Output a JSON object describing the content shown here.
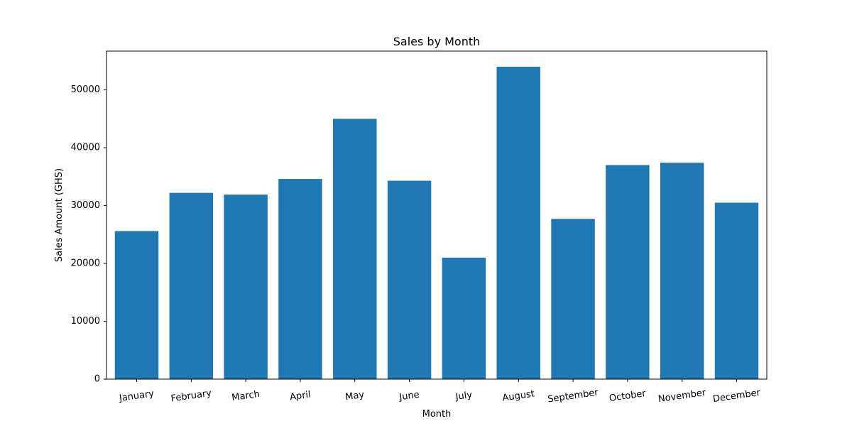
{
  "chart_data": {
    "type": "bar",
    "title": "Sales by Month",
    "xlabel": "Month",
    "ylabel": "Sales Amount (GHS)",
    "categories": [
      "January",
      "February",
      "March",
      "April",
      "May",
      "June",
      "July",
      "August",
      "September",
      "October",
      "November",
      "December"
    ],
    "values": [
      25600,
      32200,
      31900,
      34600,
      45000,
      34300,
      21000,
      54000,
      27700,
      37000,
      37400,
      30500
    ],
    "ylim": [
      0,
      56700
    ],
    "yticks": [
      0,
      10000,
      20000,
      30000,
      40000,
      50000
    ],
    "ytick_labels": [
      "0",
      "10000",
      "20000",
      "30000",
      "40000",
      "50000"
    ],
    "grid": false,
    "legend": "none",
    "colors": {
      "bar": "#1f77b4",
      "axes": "#000000",
      "background": "#ffffff"
    }
  }
}
